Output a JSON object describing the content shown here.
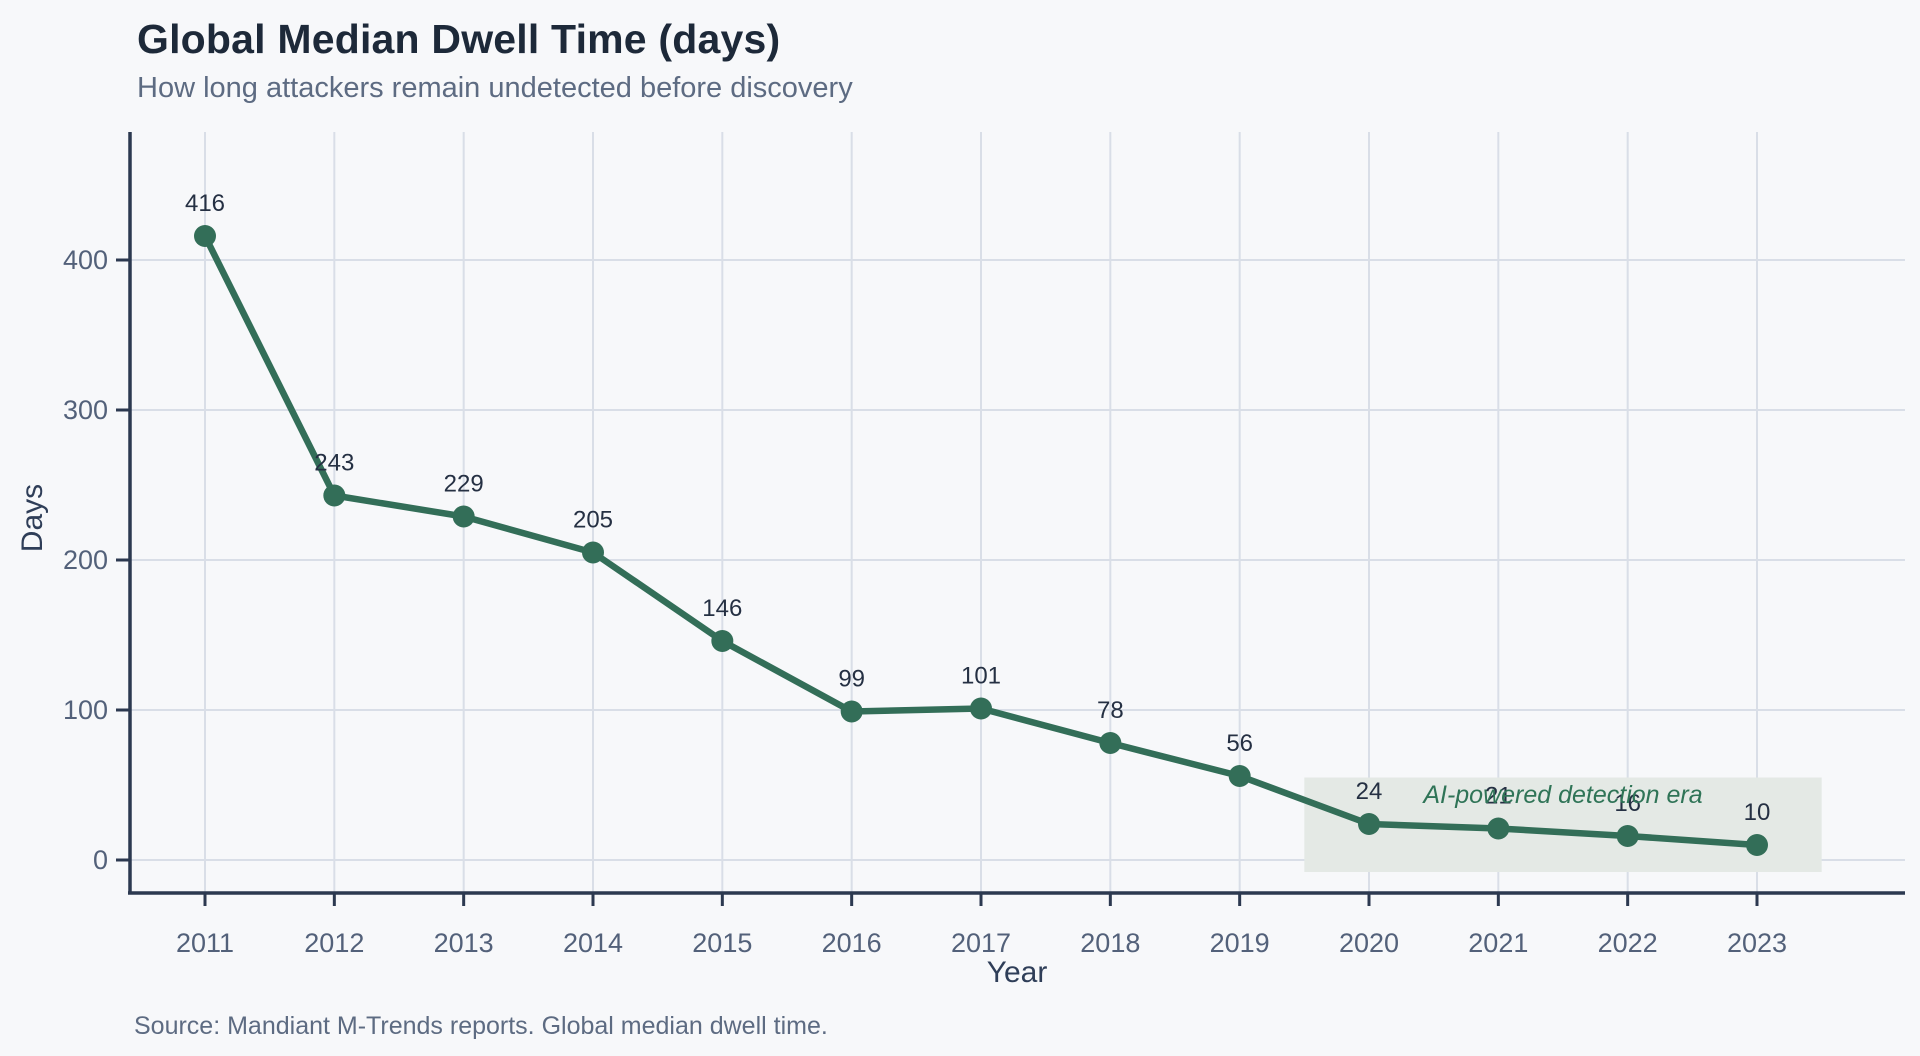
{
  "page": {
    "background_color": "#f7f8fa"
  },
  "header": {
    "title": "Global Median Dwell Time (days)",
    "subtitle": "How long attackers remain undetected before discovery"
  },
  "footer": {
    "source": "Source: Mandiant M-Trends reports. Global median dwell time."
  },
  "chart_data": {
    "type": "line",
    "title": "Global Median Dwell Time (days)",
    "subtitle": "How long attackers remain undetected before discovery",
    "xlabel": "Year",
    "ylabel": "Days",
    "categories": [
      2011,
      2012,
      2013,
      2014,
      2015,
      2016,
      2017,
      2018,
      2019,
      2020,
      2021,
      2022,
      2023
    ],
    "values": [
      416,
      243,
      229,
      205,
      146,
      99,
      101,
      78,
      56,
      24,
      21,
      16,
      10
    ],
    "yticks": [
      0,
      100,
      200,
      300,
      400
    ],
    "ylim": [
      0,
      480
    ],
    "grid": true,
    "legend": "none",
    "colors": {
      "line": "#336e58",
      "marker": "#336e58",
      "value_label": "#253043",
      "tick_label": "#53617a",
      "axis_title": "#2f3e58",
      "axis_line": "#2c3950",
      "gridline": "#d9dee7",
      "band_fill": "#e4e9e5",
      "annotation_text": "#2f7457"
    },
    "annotation": {
      "label": "AI-powered detection era",
      "x_start": 2019.5,
      "x_end": 2023.5,
      "y_top_days": 55
    }
  }
}
